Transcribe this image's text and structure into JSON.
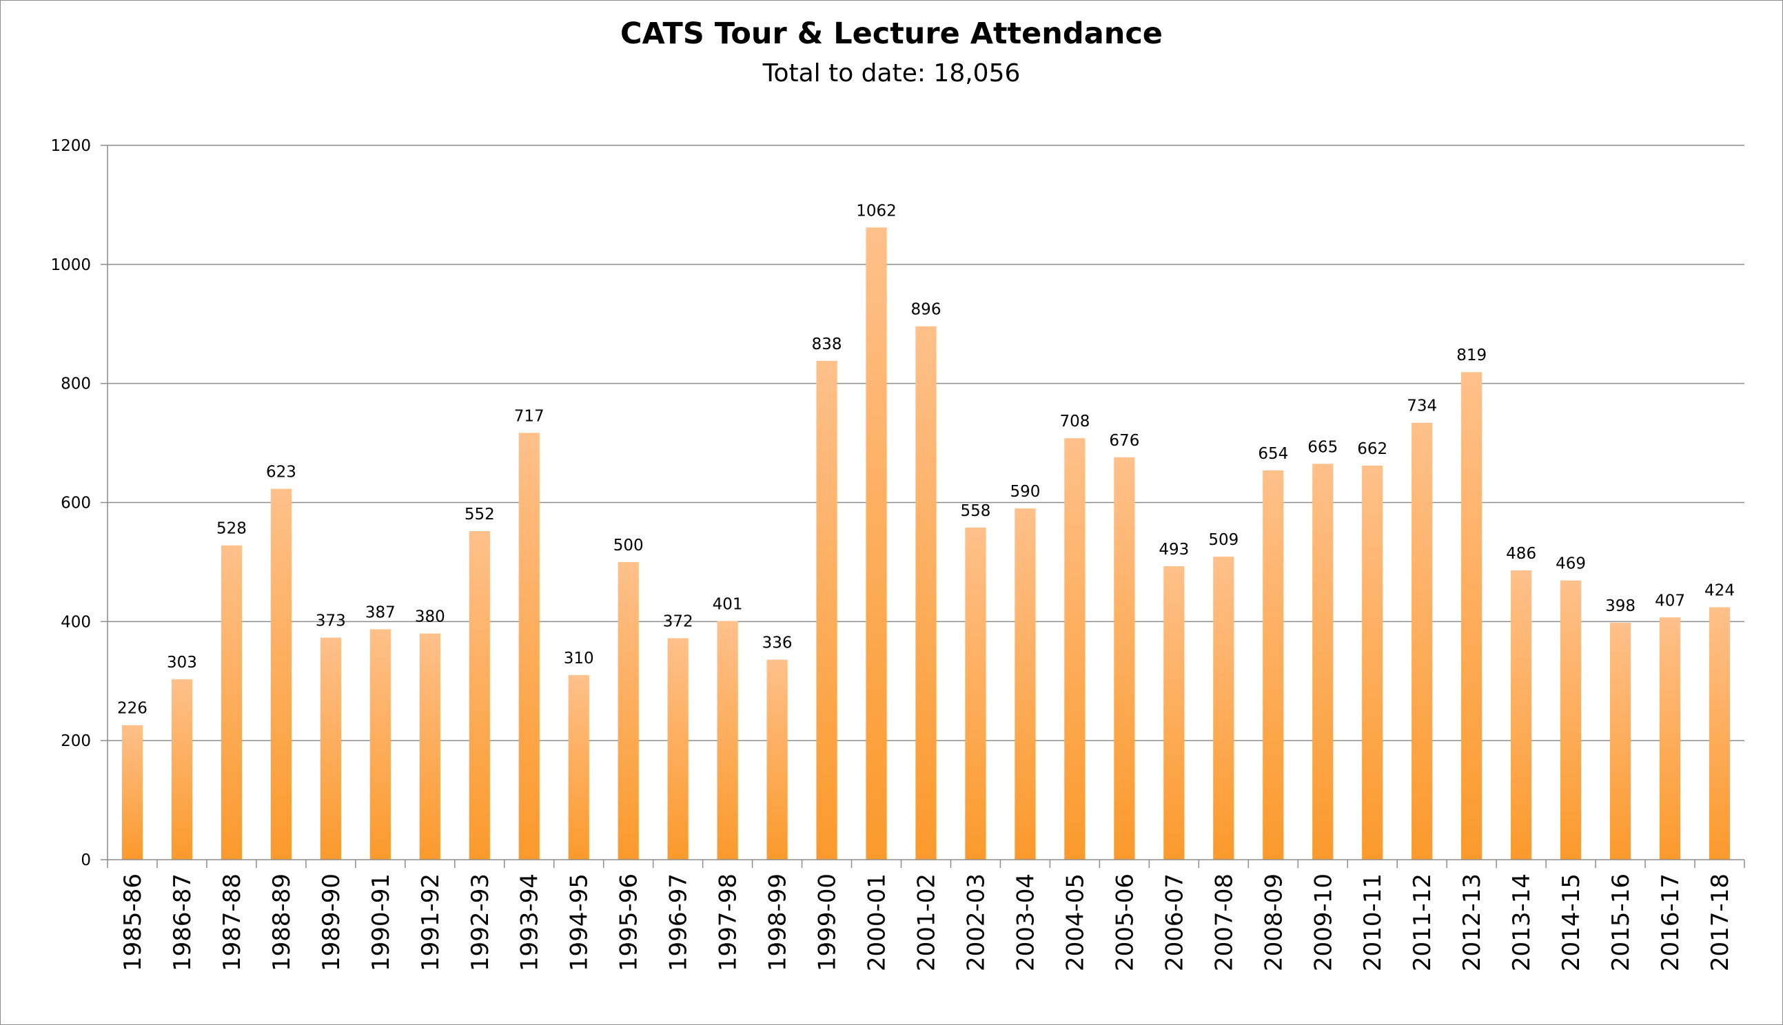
{
  "chart_data": {
    "type": "bar",
    "title": "CATS Tour & Lecture Attendance",
    "subtitle": "Total to date: 18,056",
    "xlabel": "",
    "ylabel": "",
    "ylim": [
      0,
      1200
    ],
    "yticks": [
      0,
      200,
      400,
      600,
      800,
      1000,
      1200
    ],
    "grid": true,
    "legend": "none",
    "bar_color_top": "#ffc08a",
    "bar_color_bottom": "#fb9a2c",
    "categories": [
      "1985-86",
      "1986-87",
      "1987-88",
      "1988-89",
      "1989-90",
      "1990-91",
      "1991-92",
      "1992-93",
      "1993-94",
      "1994-95",
      "1995-96",
      "1996-97",
      "1997-98",
      "1998-99",
      "1999-00",
      "2000-01",
      "2001-02",
      "2002-03",
      "2003-04",
      "2004-05",
      "2005-06",
      "2006-07",
      "2007-08",
      "2008-09",
      "2009-10",
      "2010-11",
      "2011-12",
      "2012-13",
      "2013-14",
      "2014-15",
      "2015-16",
      "2016-17",
      "2017-18"
    ],
    "values": [
      226,
      303,
      528,
      623,
      373,
      387,
      380,
      552,
      717,
      310,
      500,
      372,
      401,
      336,
      838,
      1062,
      896,
      558,
      590,
      708,
      676,
      493,
      509,
      654,
      665,
      662,
      734,
      819,
      486,
      469,
      398,
      407,
      424
    ]
  }
}
